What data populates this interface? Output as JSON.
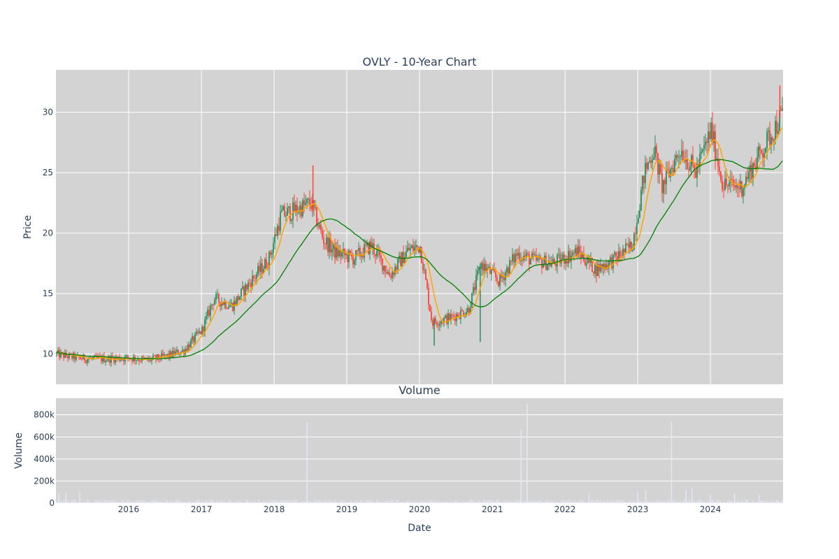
{
  "chart_data": [
    {
      "type": "candlestick",
      "title": "OVLY - 10-Year Chart",
      "ylabel": "Price",
      "ylim": [
        7.5,
        33.5
      ],
      "xlim": [
        "2015-01-01",
        "2024-12-31"
      ],
      "y_ticks": [
        10,
        15,
        20,
        25,
        30
      ],
      "grid": true,
      "colors": {
        "up": "#2e8b57",
        "down": "#ff4136",
        "ma_short": "#ffa500",
        "ma_long": "#008000",
        "plot_bg": "#d3d3d3",
        "grid": "#ffffff"
      },
      "price_path": [
        [
          "2015-01-01",
          10.0
        ],
        [
          "2015-03-01",
          9.8
        ],
        [
          "2015-06-01",
          9.6
        ],
        [
          "2015-09-01",
          9.6
        ],
        [
          "2016-01-01",
          9.7
        ],
        [
          "2016-04-01",
          9.5
        ],
        [
          "2016-07-01",
          9.8
        ],
        [
          "2016-10-01",
          10.3
        ],
        [
          "2017-01-01",
          12.0
        ],
        [
          "2017-03-01",
          14.6
        ],
        [
          "2017-06-01",
          14.0
        ],
        [
          "2017-09-01",
          16.0
        ],
        [
          "2017-12-01",
          17.8
        ],
        [
          "2018-02-01",
          21.5
        ],
        [
          "2018-04-01",
          21.8
        ],
        [
          "2018-07-01",
          22.5
        ],
        [
          "2018-09-01",
          19.5
        ],
        [
          "2018-11-01",
          18.4
        ],
        [
          "2019-02-01",
          17.9
        ],
        [
          "2019-05-01",
          19.0
        ],
        [
          "2019-08-01",
          16.5
        ],
        [
          "2019-11-01",
          18.6
        ],
        [
          "2020-01-01",
          18.9
        ],
        [
          "2020-03-01",
          12.6
        ],
        [
          "2020-06-01",
          13.0
        ],
        [
          "2020-09-01",
          13.7
        ],
        [
          "2020-11-01",
          17.5
        ],
        [
          "2021-02-01",
          16.0
        ],
        [
          "2021-05-01",
          18.3
        ],
        [
          "2021-08-01",
          17.7
        ],
        [
          "2021-11-01",
          17.5
        ],
        [
          "2022-03-01",
          18.5
        ],
        [
          "2022-06-01",
          17.0
        ],
        [
          "2022-09-01",
          17.8
        ],
        [
          "2022-12-01",
          19.0
        ],
        [
          "2023-02-01",
          25.0
        ],
        [
          "2023-03-20",
          27.0
        ],
        [
          "2023-05-01",
          23.8
        ],
        [
          "2023-08-01",
          27.0
        ],
        [
          "2023-10-15",
          25.0
        ],
        [
          "2024-01-01",
          28.5
        ],
        [
          "2024-03-01",
          24.0
        ],
        [
          "2024-06-01",
          23.8
        ],
        [
          "2024-09-01",
          26.5
        ],
        [
          "2024-12-31",
          30.0
        ]
      ],
      "spikes": [
        [
          "2018-07-15",
          25.6
        ],
        [
          "2020-03-15",
          10.7
        ],
        [
          "2020-11-01",
          11.0
        ],
        [
          "2024-12-15",
          32.2
        ]
      ],
      "ma_short_label": "",
      "ma_long_label": ""
    },
    {
      "type": "bar",
      "title": "Volume",
      "xlabel": "Date",
      "ylabel": "Volume",
      "ylim": [
        0,
        950000
      ],
      "y_ticks": [
        0,
        200000,
        400000,
        600000,
        800000
      ],
      "y_tick_labels": [
        "0",
        "200k",
        "400k",
        "600k",
        "800k"
      ],
      "x_ticks": [
        "2016-01-01",
        "2017-01-01",
        "2018-01-01",
        "2019-01-01",
        "2020-01-01",
        "2021-01-01",
        "2022-01-01",
        "2023-01-01",
        "2024-01-01"
      ],
      "x_tick_labels": [
        "2016",
        "2017",
        "2018",
        "2019",
        "2020",
        "2021",
        "2022",
        "2023",
        "2024"
      ],
      "bar_color": "#e6e6fa",
      "spikes": [
        [
          "2015-01-15",
          90000
        ],
        [
          "2015-02-20",
          100000
        ],
        [
          "2015-05-01",
          95000
        ],
        [
          "2018-06-15",
          730000
        ],
        [
          "2021-05-25",
          670000
        ],
        [
          "2021-06-25",
          900000
        ],
        [
          "2022-05-01",
          90000
        ],
        [
          "2023-01-01",
          100000
        ],
        [
          "2023-02-10",
          120000
        ],
        [
          "2023-06-20",
          740000
        ],
        [
          "2023-09-01",
          120000
        ],
        [
          "2023-10-01",
          130000
        ],
        [
          "2024-01-01",
          80000
        ],
        [
          "2024-05-01",
          90000
        ],
        [
          "2024-09-01",
          75000
        ]
      ],
      "base_level": 15000
    }
  ]
}
